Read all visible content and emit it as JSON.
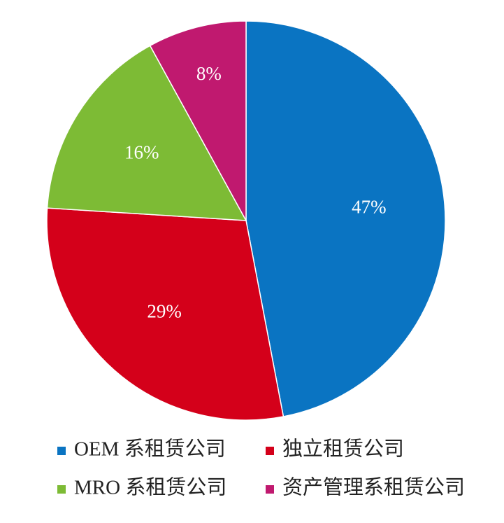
{
  "chart_data": {
    "type": "pie",
    "categories": [
      "OEM 系租赁公司",
      "独立租赁公司",
      "MRO 系租赁公司",
      "资产管理系租赁公司"
    ],
    "values": [
      47,
      29,
      16,
      8
    ],
    "value_labels": [
      "47%",
      "29%",
      "16%",
      "8%"
    ],
    "colors": [
      "#0a74c2",
      "#d4001a",
      "#7dbb35",
      "#c0196f"
    ]
  }
}
